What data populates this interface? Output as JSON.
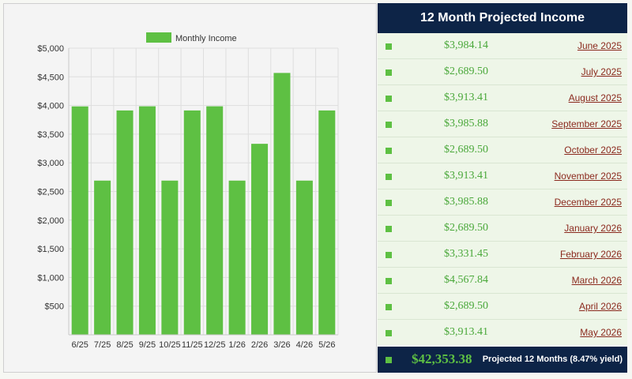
{
  "chart_data": {
    "type": "bar",
    "categories": [
      "6/25",
      "7/25",
      "8/25",
      "9/25",
      "10/25",
      "11/25",
      "12/25",
      "1/26",
      "2/26",
      "3/26",
      "4/26",
      "5/26"
    ],
    "series": [
      {
        "name": "Monthly Income",
        "values": [
          3984.14,
          2689.5,
          3913.41,
          3985.88,
          2689.5,
          3913.41,
          3985.88,
          2689.5,
          3331.45,
          4567.84,
          2689.5,
          3913.41
        ]
      }
    ],
    "yticks": [
      500,
      1000,
      1500,
      2000,
      2500,
      3000,
      3500,
      4000,
      4500,
      5000
    ],
    "ytick_labels": [
      "$500",
      "$1,000",
      "$1,500",
      "$2,000",
      "$2,500",
      "$3,000",
      "$3,500",
      "$4,000",
      "$4,500",
      "$5,000"
    ],
    "ylim": [
      0,
      5000
    ],
    "legend_position": "top",
    "grid": true,
    "bar_color": "#5ec043"
  },
  "income_panel": {
    "title": "12 Month Projected Income",
    "rows": [
      {
        "amount": "$3,984.14",
        "month": "June 2025"
      },
      {
        "amount": "$2,689.50",
        "month": "July 2025"
      },
      {
        "amount": "$3,913.41",
        "month": "August 2025"
      },
      {
        "amount": "$3,985.88",
        "month": "September 2025"
      },
      {
        "amount": "$2,689.50",
        "month": "October 2025"
      },
      {
        "amount": "$3,913.41",
        "month": "November 2025"
      },
      {
        "amount": "$3,985.88",
        "month": "December 2025"
      },
      {
        "amount": "$2,689.50",
        "month": "January 2026"
      },
      {
        "amount": "$3,331.45",
        "month": "February 2026"
      },
      {
        "amount": "$4,567.84",
        "month": "March 2026"
      },
      {
        "amount": "$2,689.50",
        "month": "April 2026"
      },
      {
        "amount": "$3,913.41",
        "month": "May 2026"
      }
    ],
    "total": "$42,353.38",
    "total_label": "Projected 12 Months (8.47% yield)"
  }
}
